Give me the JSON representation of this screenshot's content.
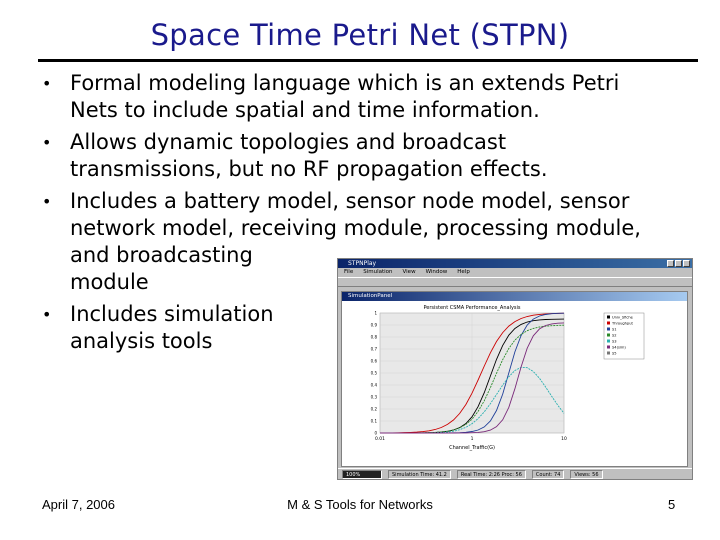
{
  "title": "Space Time Petri Net (STPN)",
  "bullets": [
    {
      "lines": [
        "Formal modeling language which is an extends Petri",
        "Nets to include spatial and time information."
      ]
    },
    {
      "lines": [
        "Allows dynamic topologies and broadcast",
        "transmissions, but no RF propagation effects."
      ]
    },
    {
      "lines": [
        "Includes a battery model, sensor node model, sensor",
        "network model, receiving module, processing module,",
        "and broadcasting",
        "module"
      ]
    },
    {
      "lines": [
        "Includes simulation",
        "analysis tools"
      ]
    }
  ],
  "screenshot": {
    "window_title": "STPNPlay",
    "menu": [
      "File",
      "Simulation",
      "View",
      "Window",
      "Help"
    ],
    "inner_title": "SimulationPanel",
    "chart_title": "Persistent CSMA Performance_Analysis",
    "xlabel": "Channel_Traffic(G)",
    "x_ticks": [
      "0.01",
      "1",
      "10"
    ],
    "y_ticks": [
      "0",
      "0.1",
      "0.2",
      "0.3",
      "0.4",
      "0.5",
      "0.6",
      "0.7",
      "0.8",
      "0.9",
      "1"
    ],
    "legend": [
      "Univ_Sfiche",
      "Throughput",
      "S1",
      "S2",
      "S3",
      "S4(sim)",
      "S5"
    ],
    "series_colors": [
      "#000000",
      "#cc0000",
      "#1f3f99",
      "#2a8a2a",
      "#2ab0b0",
      "#7a2a7a",
      "#777777"
    ],
    "status": [
      "100%",
      "Simulation Time: 41.2",
      "Real Time: 2:26 Proc: 56",
      "Count: 74",
      "Views: 56"
    ]
  },
  "footer": {
    "date": "April 7, 2006",
    "center": "M & S Tools for Networks",
    "page": "5"
  }
}
